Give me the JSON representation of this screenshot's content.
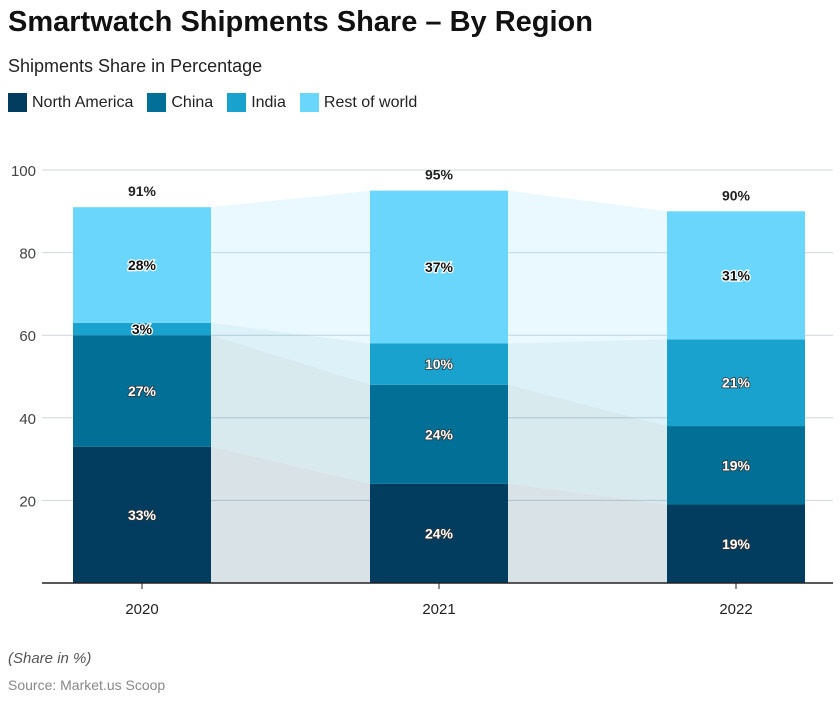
{
  "chart_data": {
    "type": "bar",
    "stacked": true,
    "title": "Smartwatch Shipments Share – By Region",
    "subtitle": "Shipments Share in Percentage",
    "categories": [
      "2020",
      "2021",
      "2022"
    ],
    "series": [
      {
        "name": "North America",
        "values": [
          33,
          24,
          19
        ],
        "color": "#023d5f"
      },
      {
        "name": "China",
        "values": [
          27,
          24,
          19
        ],
        "color": "#026f96"
      },
      {
        "name": "India",
        "values": [
          3,
          10,
          21
        ],
        "color": "#18a2cd"
      },
      {
        "name": "Rest of world",
        "values": [
          28,
          37,
          31
        ],
        "color": "#6ad6fc"
      }
    ],
    "totals": [
      "91%",
      "95%",
      "90%"
    ],
    "ylim": [
      0,
      100
    ],
    "yticks": [
      20,
      40,
      60,
      80,
      100
    ],
    "grid": true,
    "legend": "top-left",
    "note": "(Share in %)",
    "source": "Source: Market.us Scoop"
  }
}
